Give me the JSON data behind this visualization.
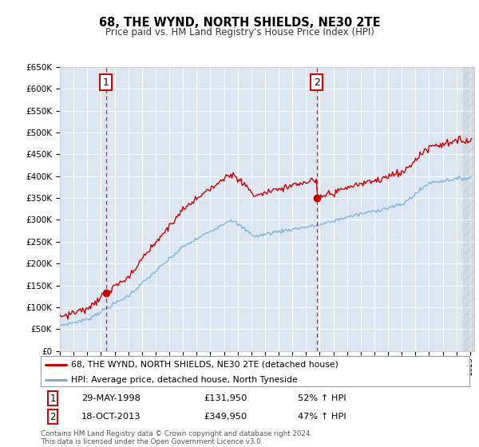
{
  "title": "68, THE WYND, NORTH SHIELDS, NE30 2TE",
  "subtitle": "Price paid vs. HM Land Registry's House Price Index (HPI)",
  "legend_line1": "68, THE WYND, NORTH SHIELDS, NE30 2TE (detached house)",
  "legend_line2": "HPI: Average price, detached house, North Tyneside",
  "marker1_label": "1",
  "marker2_label": "2",
  "marker1_date": "29-MAY-1998",
  "marker1_price": "£131,950",
  "marker1_hpi": "52% ↑ HPI",
  "marker2_date": "18-OCT-2013",
  "marker2_price": "£349,950",
  "marker2_hpi": "47% ↑ HPI",
  "footer": "Contains HM Land Registry data © Crown copyright and database right 2024.\nThis data is licensed under the Open Government Licence v3.0.",
  "ylim": [
    0,
    650000
  ],
  "xlim_start": 1995.0,
  "xlim_end": 2025.3,
  "red_line_color": "#cc0000",
  "blue_line_color": "#7bafd4",
  "vline_color": "#cc0000",
  "plot_bg": "#dce6f1",
  "grid_color": "#ffffff",
  "marker1_x": 1998.38,
  "marker2_x": 2013.79,
  "sale1_y": 131950,
  "sale2_y": 349950,
  "red_dot_color": "#cc0000"
}
